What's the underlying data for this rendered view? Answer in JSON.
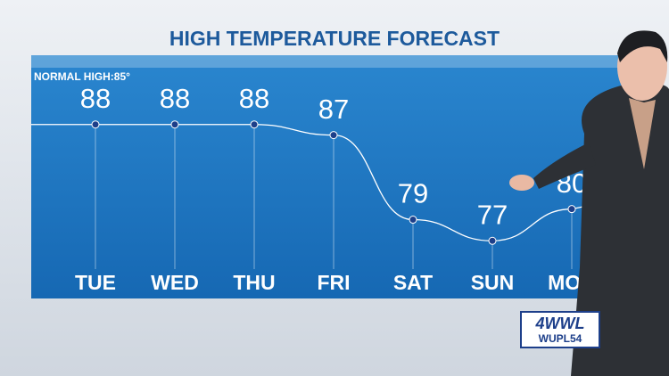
{
  "chart_data": {
    "type": "line",
    "title": "HIGH TEMPERATURE FORECAST",
    "annotation": "NORMAL HIGH:85°",
    "categories": [
      "TUE",
      "WED",
      "THU",
      "FRI",
      "SAT",
      "SUN",
      "MON"
    ],
    "values": [
      88,
      88,
      88,
      87,
      79,
      77,
      80
    ],
    "color": "#ffffff",
    "ylim": [
      75,
      90
    ]
  },
  "logo": {
    "main": "4WWL",
    "sub": "WUPL54"
  }
}
